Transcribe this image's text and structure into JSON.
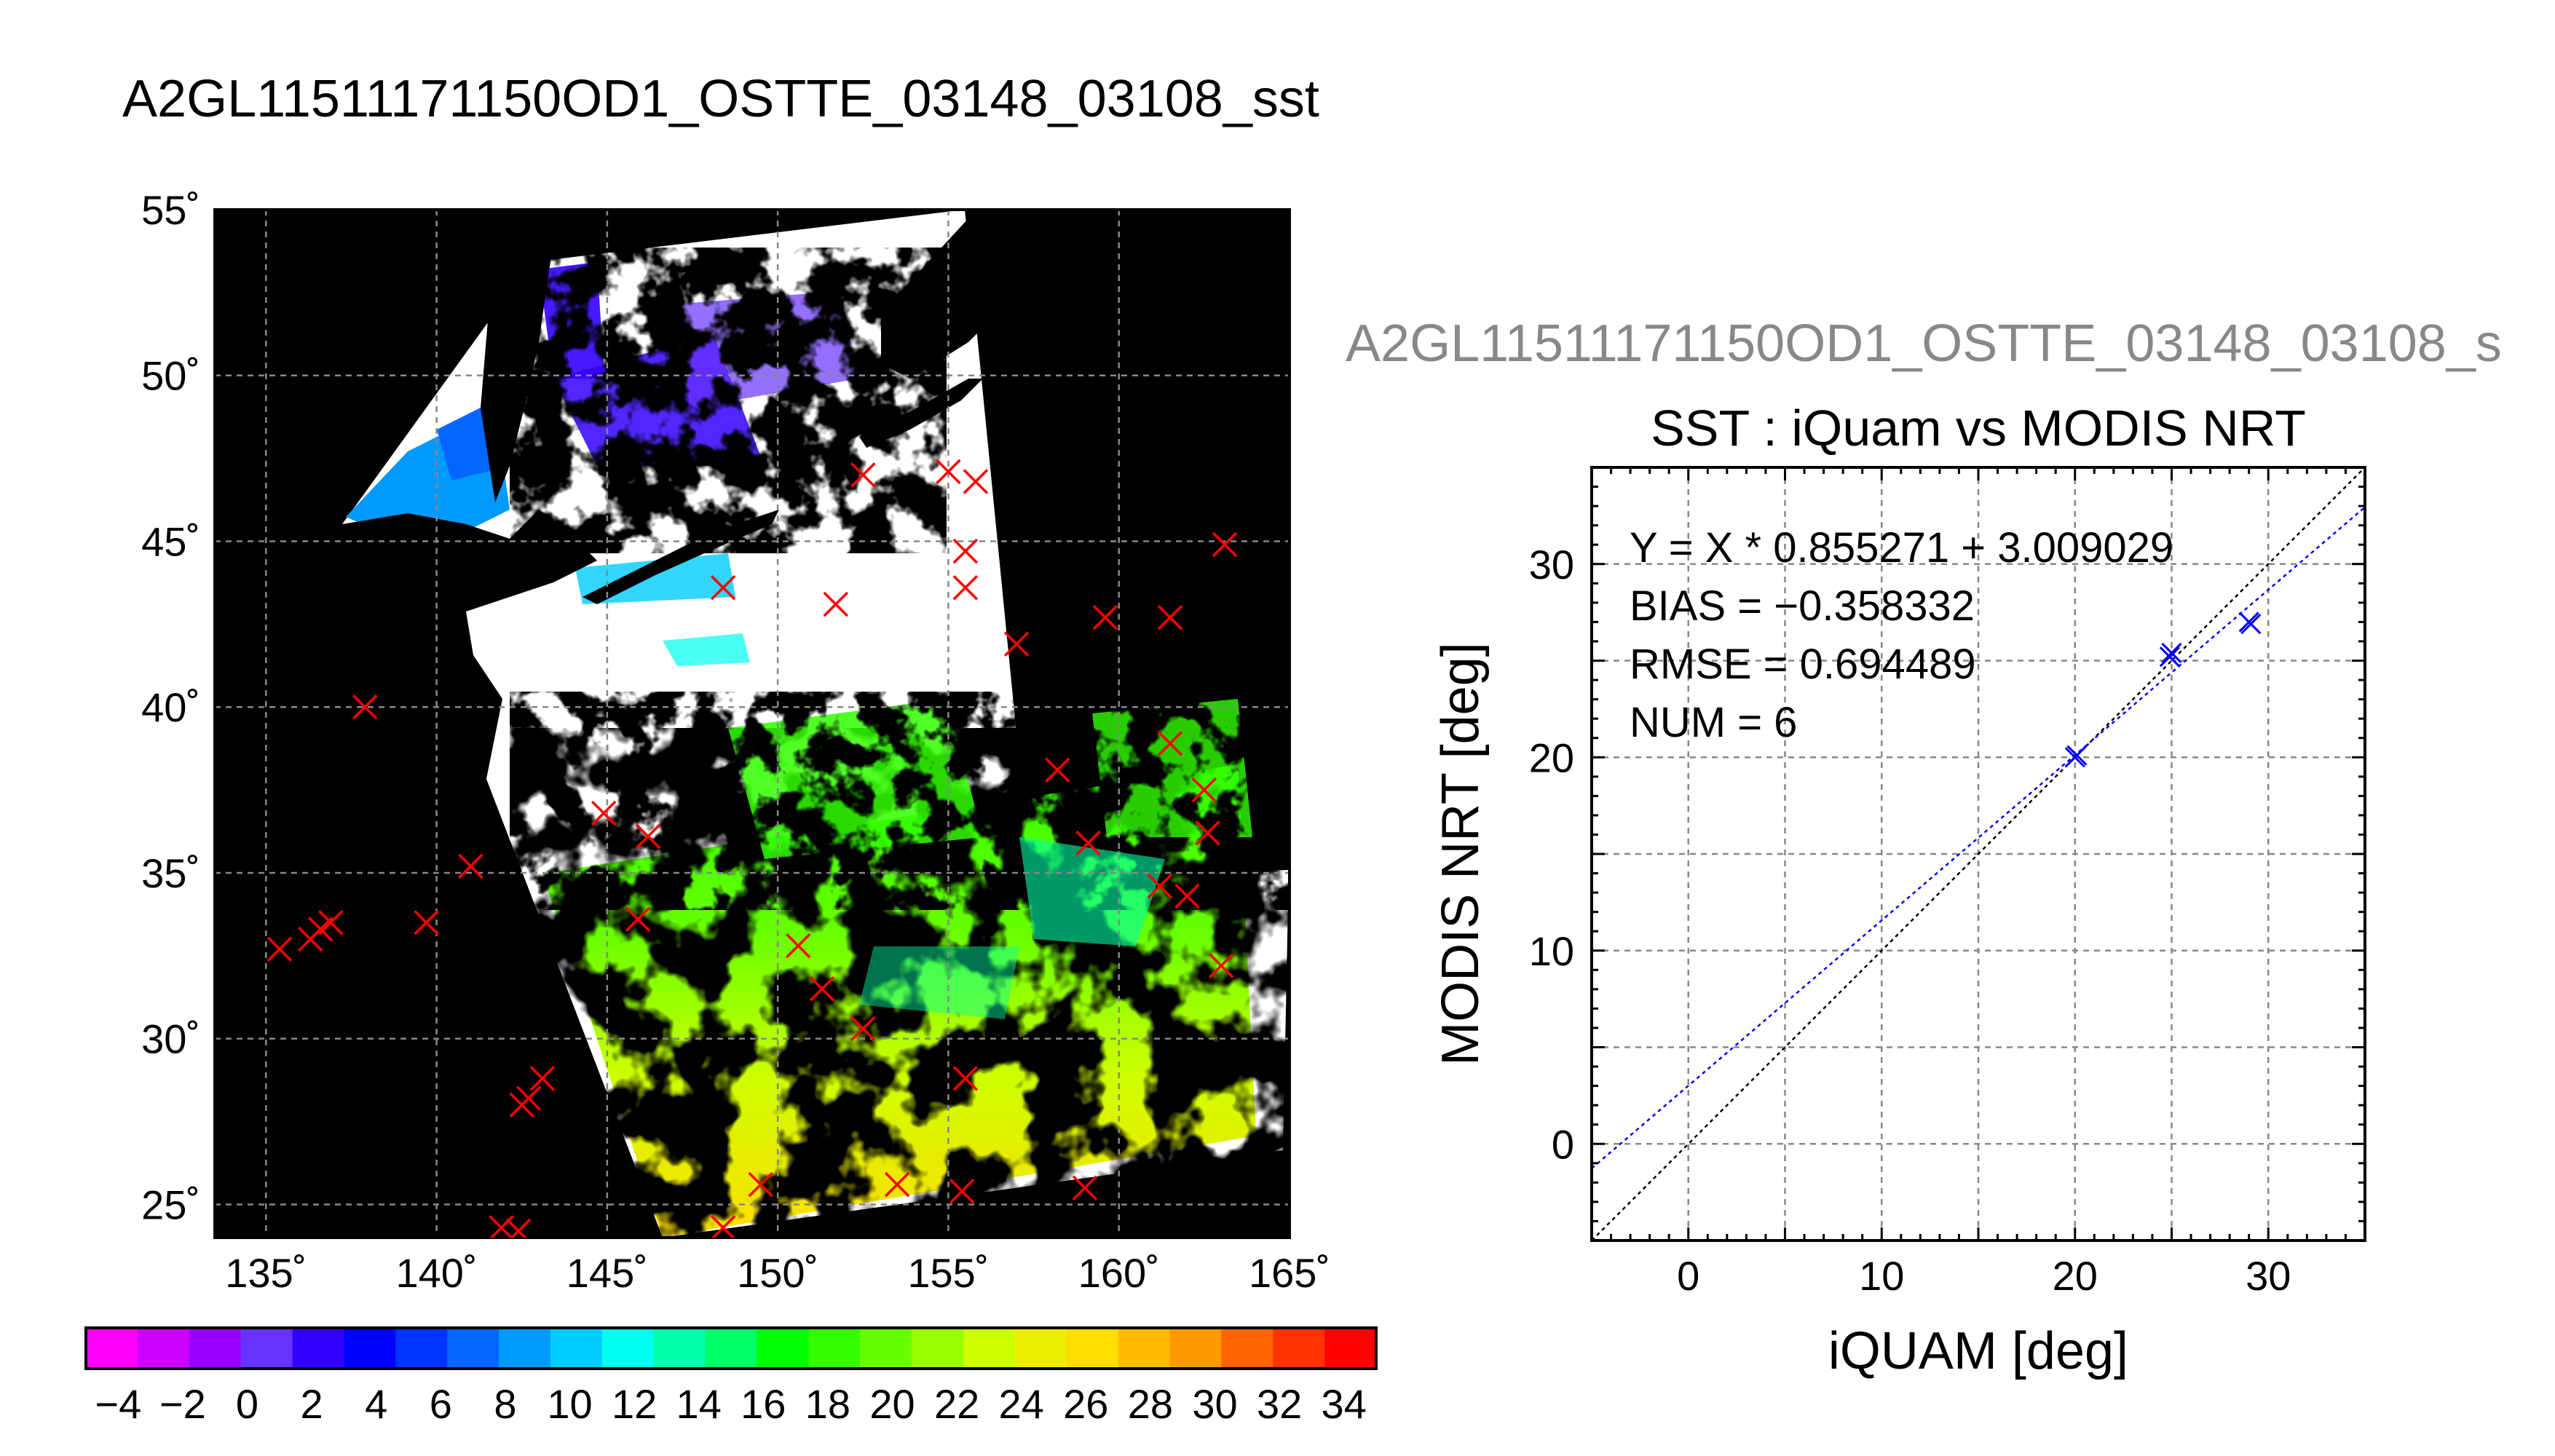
{
  "figure": {
    "main_title": "A2GL11511171150OD1_OSTTE_03148_03108_sst",
    "scatter_header": "A2GL11511171150OD1_OSTTE_03148_03108_s"
  },
  "colorbar": {
    "tick_labels": [
      "−4",
      "−2",
      "0",
      "2",
      "4",
      "6",
      "8",
      "10",
      "12",
      "14",
      "16",
      "18",
      "20",
      "22",
      "24",
      "26",
      "28",
      "30",
      "32",
      "34"
    ],
    "min": -5,
    "max": 35,
    "colors": [
      "#ff00ff",
      "#cc00ff",
      "#9900ff",
      "#6633ff",
      "#3300ff",
      "#0000ff",
      "#0033ff",
      "#0066ff",
      "#0099ff",
      "#00ccff",
      "#00ffee",
      "#00ffaa",
      "#00ff66",
      "#00ff00",
      "#33ff00",
      "#66ff00",
      "#99ff00",
      "#ccff00",
      "#eeee00",
      "#ffdd00",
      "#ffbb00",
      "#ff9900",
      "#ff6600",
      "#ff3300",
      "#ff0000"
    ]
  },
  "colors": {
    "land": "#000000",
    "cloud": "#ffffff",
    "station_marker": "#ff0000",
    "fit_line": "#0000ff",
    "identity_line": "#000000",
    "point_marker": "#0000ff"
  },
  "chart_data": [
    {
      "type": "scatter",
      "subtype": "map",
      "x_ticks": [
        "135˚",
        "140˚",
        "145˚",
        "150˚",
        "155˚",
        "160˚",
        "165˚"
      ],
      "y_ticks": [
        "25˚",
        "30˚",
        "35˚",
        "40˚",
        "45˚",
        "50˚",
        "55˚"
      ],
      "xlim": [
        133.5,
        165
      ],
      "ylim": [
        24,
        55
      ],
      "grid": true,
      "series": [
        {
          "points": [
            [
              135.4,
              32.7
            ],
            [
              136.3,
              33.0
            ],
            [
              136.6,
              33.3
            ],
            [
              136.9,
              33.5
            ],
            [
              139.7,
              33.5
            ],
            [
              141.0,
              35.2
            ],
            [
              137.9,
              40.0
            ],
            [
              142.5,
              28.0
            ],
            [
              142.7,
              28.2
            ],
            [
              143.1,
              28.8
            ],
            [
              141.9,
              24.3
            ],
            [
              142.4,
              24.2
            ],
            [
              144.9,
              36.8
            ],
            [
              146.2,
              36.1
            ],
            [
              145.9,
              33.6
            ],
            [
              148.4,
              43.6
            ],
            [
              148.4,
              24.3
            ],
            [
              149.5,
              25.6
            ],
            [
              151.7,
              43.1
            ],
            [
              152.5,
              47.0
            ],
            [
              150.6,
              32.8
            ],
            [
              151.3,
              31.5
            ],
            [
              152.5,
              30.3
            ],
            [
              153.5,
              25.6
            ],
            [
              155.0,
              47.1
            ],
            [
              155.8,
              46.8
            ],
            [
              155.5,
              44.7
            ],
            [
              155.5,
              43.6
            ],
            [
              157.0,
              41.9
            ],
            [
              155.5,
              28.8
            ],
            [
              155.4,
              25.4
            ],
            [
              158.2,
              38.1
            ],
            [
              159.1,
              35.9
            ],
            [
              159.0,
              25.5
            ],
            [
              159.6,
              42.7
            ],
            [
              161.5,
              42.7
            ],
            [
              161.5,
              38.9
            ],
            [
              161.2,
              34.6
            ],
            [
              162.0,
              34.3
            ],
            [
              162.5,
              37.5
            ],
            [
              162.6,
              36.2
            ],
            [
              163.0,
              32.2
            ],
            [
              163.1,
              44.9
            ]
          ]
        }
      ]
    },
    {
      "type": "scatter",
      "title": "SST : iQuam vs MODIS NRT",
      "xlabel": "iQUAM [deg]",
      "ylabel": "MODIS NRT [deg]",
      "xlim": [
        -5,
        35
      ],
      "ylim": [
        -5,
        35
      ],
      "x_ticks": [
        "0",
        "10",
        "20",
        "30"
      ],
      "y_ticks": [
        "0",
        "10",
        "20",
        "30"
      ],
      "grid": true,
      "annotations": [
        "Y = X * 0.855271 + 3.009029",
        "BIAS = −0.358332",
        "RMSE = 0.694489",
        "NUM = 6"
      ],
      "fit": {
        "slope": 0.855271,
        "intercept": 3.009029
      },
      "points": [
        {
          "x": 20.0,
          "y": 20.0
        },
        {
          "x": 20.1,
          "y": 20.1
        },
        {
          "x": 24.9,
          "y": 25.2
        },
        {
          "x": 25.0,
          "y": 25.4
        },
        {
          "x": 29.1,
          "y": 26.9
        },
        {
          "x": 29.0,
          "y": 27.0
        }
      ]
    }
  ]
}
